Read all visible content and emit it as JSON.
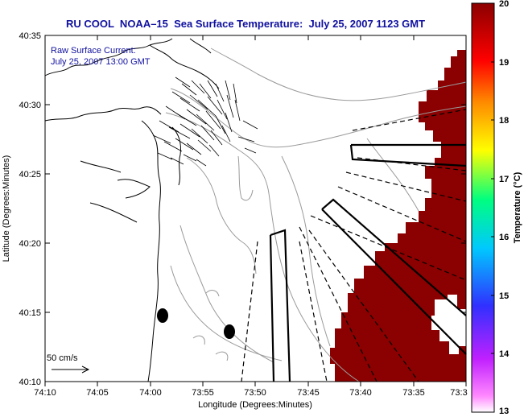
{
  "header": {
    "title": "RU COOL  NOAA–15  Sea Surface Temperature:  July 25, 2007 1123 GMT"
  },
  "annotation": {
    "line1": "Raw Surface Current:",
    "line2": "July 25, 2007 13:00 GMT",
    "scale_label": "50 cm/s"
  },
  "axes": {
    "xlabel": "Longitude (Degrees:Minutes)",
    "ylabel": "Latitude (Degrees:Minutes)",
    "xticks": [
      "74:10",
      "74:05",
      "74:00",
      "73:55",
      "73:50",
      "73:45",
      "73:40",
      "73:35",
      "73:3"
    ],
    "yticks": [
      "40:35",
      "40:30",
      "40:25",
      "40:20",
      "40:15",
      "40:10"
    ]
  },
  "colorbar": {
    "label": "Temperature (°C)",
    "ticks": [
      "20",
      "19",
      "18",
      "17",
      "16",
      "15",
      "14",
      "13"
    ],
    "range": [
      13,
      20
    ],
    "colors": [
      "#ff88ff",
      "#c020ff",
      "#3030ff",
      "#00c8ff",
      "#00ff80",
      "#ffff00",
      "#ff8800",
      "#ff0000",
      "#8b0000"
    ]
  },
  "map": {
    "sst_color": "#8b0000",
    "coast_color": "#000000",
    "contour_color": "#999999"
  }
}
